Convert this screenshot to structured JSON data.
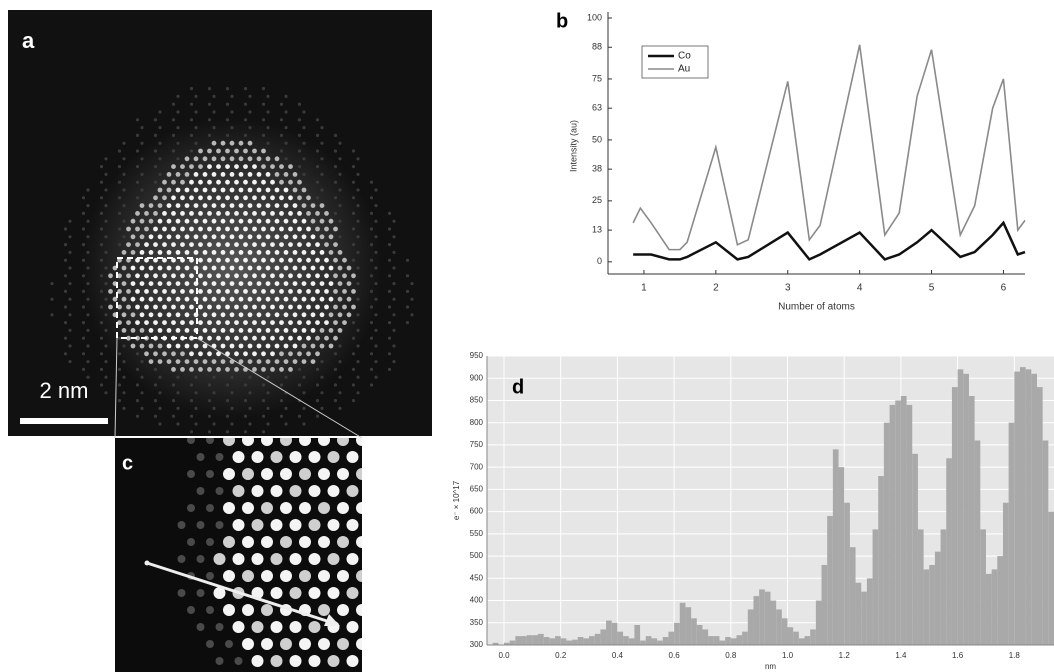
{
  "panels": {
    "a": {
      "label": "a",
      "scale_bar": "2 nm"
    },
    "c": {
      "label": "c"
    }
  },
  "chart_data": [
    {
      "type": "line",
      "panel_label": "b",
      "xlabel": "Number of atoms",
      "ylabel": "Intensity (au)",
      "x": [
        0.85,
        0.95,
        1.1,
        1.35,
        1.5,
        1.6,
        2.0,
        2.3,
        2.45,
        3.0,
        3.3,
        3.45,
        4.0,
        4.35,
        4.55,
        4.8,
        5.0,
        5.4,
        5.6,
        5.85,
        6.0,
        6.2,
        6.3
      ],
      "series": [
        {
          "name": "Co",
          "color": "#111111",
          "values": [
            3,
            3,
            3,
            1,
            1,
            2,
            8,
            1,
            2,
            12,
            1,
            3,
            12,
            1,
            3,
            8,
            13,
            2,
            4,
            11,
            16,
            3,
            4
          ]
        },
        {
          "name": "Au",
          "color": "#8a8a8a",
          "values": [
            16,
            22,
            16,
            5,
            5,
            8,
            47,
            7,
            9,
            74,
            9,
            15,
            89,
            11,
            20,
            68,
            87,
            11,
            23,
            63,
            75,
            13,
            17
          ]
        }
      ],
      "xlim": [
        0.5,
        6.3
      ],
      "xticks": [
        1,
        2,
        3,
        4,
        5,
        6
      ],
      "ylim": [
        -5,
        100
      ],
      "yticks": [
        0,
        13,
        25,
        38,
        50,
        63,
        75,
        88,
        100
      ],
      "legend": "upper left"
    },
    {
      "type": "histogram",
      "panel_label": "d",
      "xlabel": "nm",
      "ylabel": "e⁻ × 10^17",
      "color": "#a9a9a9",
      "bins": [
        -0.06,
        -0.04,
        -0.02,
        0,
        0.02,
        0.04,
        0.06,
        0.08,
        0.1,
        0.12,
        0.14,
        0.16,
        0.18,
        0.2,
        0.22,
        0.24,
        0.26,
        0.28,
        0.3,
        0.32,
        0.34,
        0.36,
        0.38,
        0.4,
        0.42,
        0.44,
        0.46,
        0.48,
        0.5,
        0.52,
        0.54,
        0.56,
        0.58,
        0.6,
        0.62,
        0.64,
        0.66,
        0.68,
        0.7,
        0.72,
        0.74,
        0.76,
        0.78,
        0.8,
        0.82,
        0.84,
        0.86,
        0.88,
        0.9,
        0.92,
        0.94,
        0.96,
        0.98,
        1,
        1.02,
        1.04,
        1.06,
        1.08,
        1.1,
        1.12,
        1.14,
        1.16,
        1.18,
        1.2,
        1.22,
        1.24,
        1.26,
        1.28,
        1.3,
        1.32,
        1.34,
        1.36,
        1.38,
        1.4,
        1.42,
        1.44,
        1.46,
        1.48,
        1.5,
        1.52,
        1.54,
        1.56,
        1.58,
        1.6,
        1.62,
        1.64,
        1.66,
        1.68,
        1.7,
        1.72,
        1.74,
        1.76,
        1.78,
        1.8,
        1.82,
        1.84,
        1.86,
        1.88,
        1.9,
        1.92,
        1.94
      ],
      "values": [
        300,
        305,
        300,
        305,
        310,
        320,
        320,
        322,
        322,
        325,
        318,
        315,
        320,
        315,
        310,
        312,
        318,
        315,
        320,
        325,
        335,
        355,
        350,
        330,
        320,
        315,
        345,
        310,
        320,
        315,
        310,
        318,
        330,
        350,
        395,
        385,
        360,
        345,
        335,
        320,
        320,
        310,
        318,
        315,
        322,
        330,
        380,
        410,
        425,
        420,
        400,
        380,
        360,
        340,
        330,
        315,
        320,
        335,
        400,
        480,
        590,
        740,
        700,
        620,
        520,
        440,
        420,
        450,
        560,
        680,
        800,
        840,
        850,
        860,
        840,
        730,
        560,
        470,
        480,
        510,
        560,
        720,
        880,
        920,
        910,
        860,
        760,
        560,
        460,
        470,
        500,
        620,
        800,
        915,
        925,
        920,
        910,
        880,
        760,
        600
      ],
      "xlim": [
        -0.06,
        1.94
      ],
      "xticks": [
        {
          "value": 0,
          "label": "0.0"
        },
        0.2,
        0.4,
        0.6,
        0.8,
        {
          "value": 1,
          "label": "1.0"
        },
        1.2,
        1.4,
        1.6,
        1.8
      ],
      "ylim": [
        300,
        950
      ],
      "yticks": [
        300,
        350,
        400,
        450,
        500,
        550,
        600,
        650,
        700,
        750,
        800,
        850,
        900,
        950
      ],
      "grid": true
    }
  ]
}
